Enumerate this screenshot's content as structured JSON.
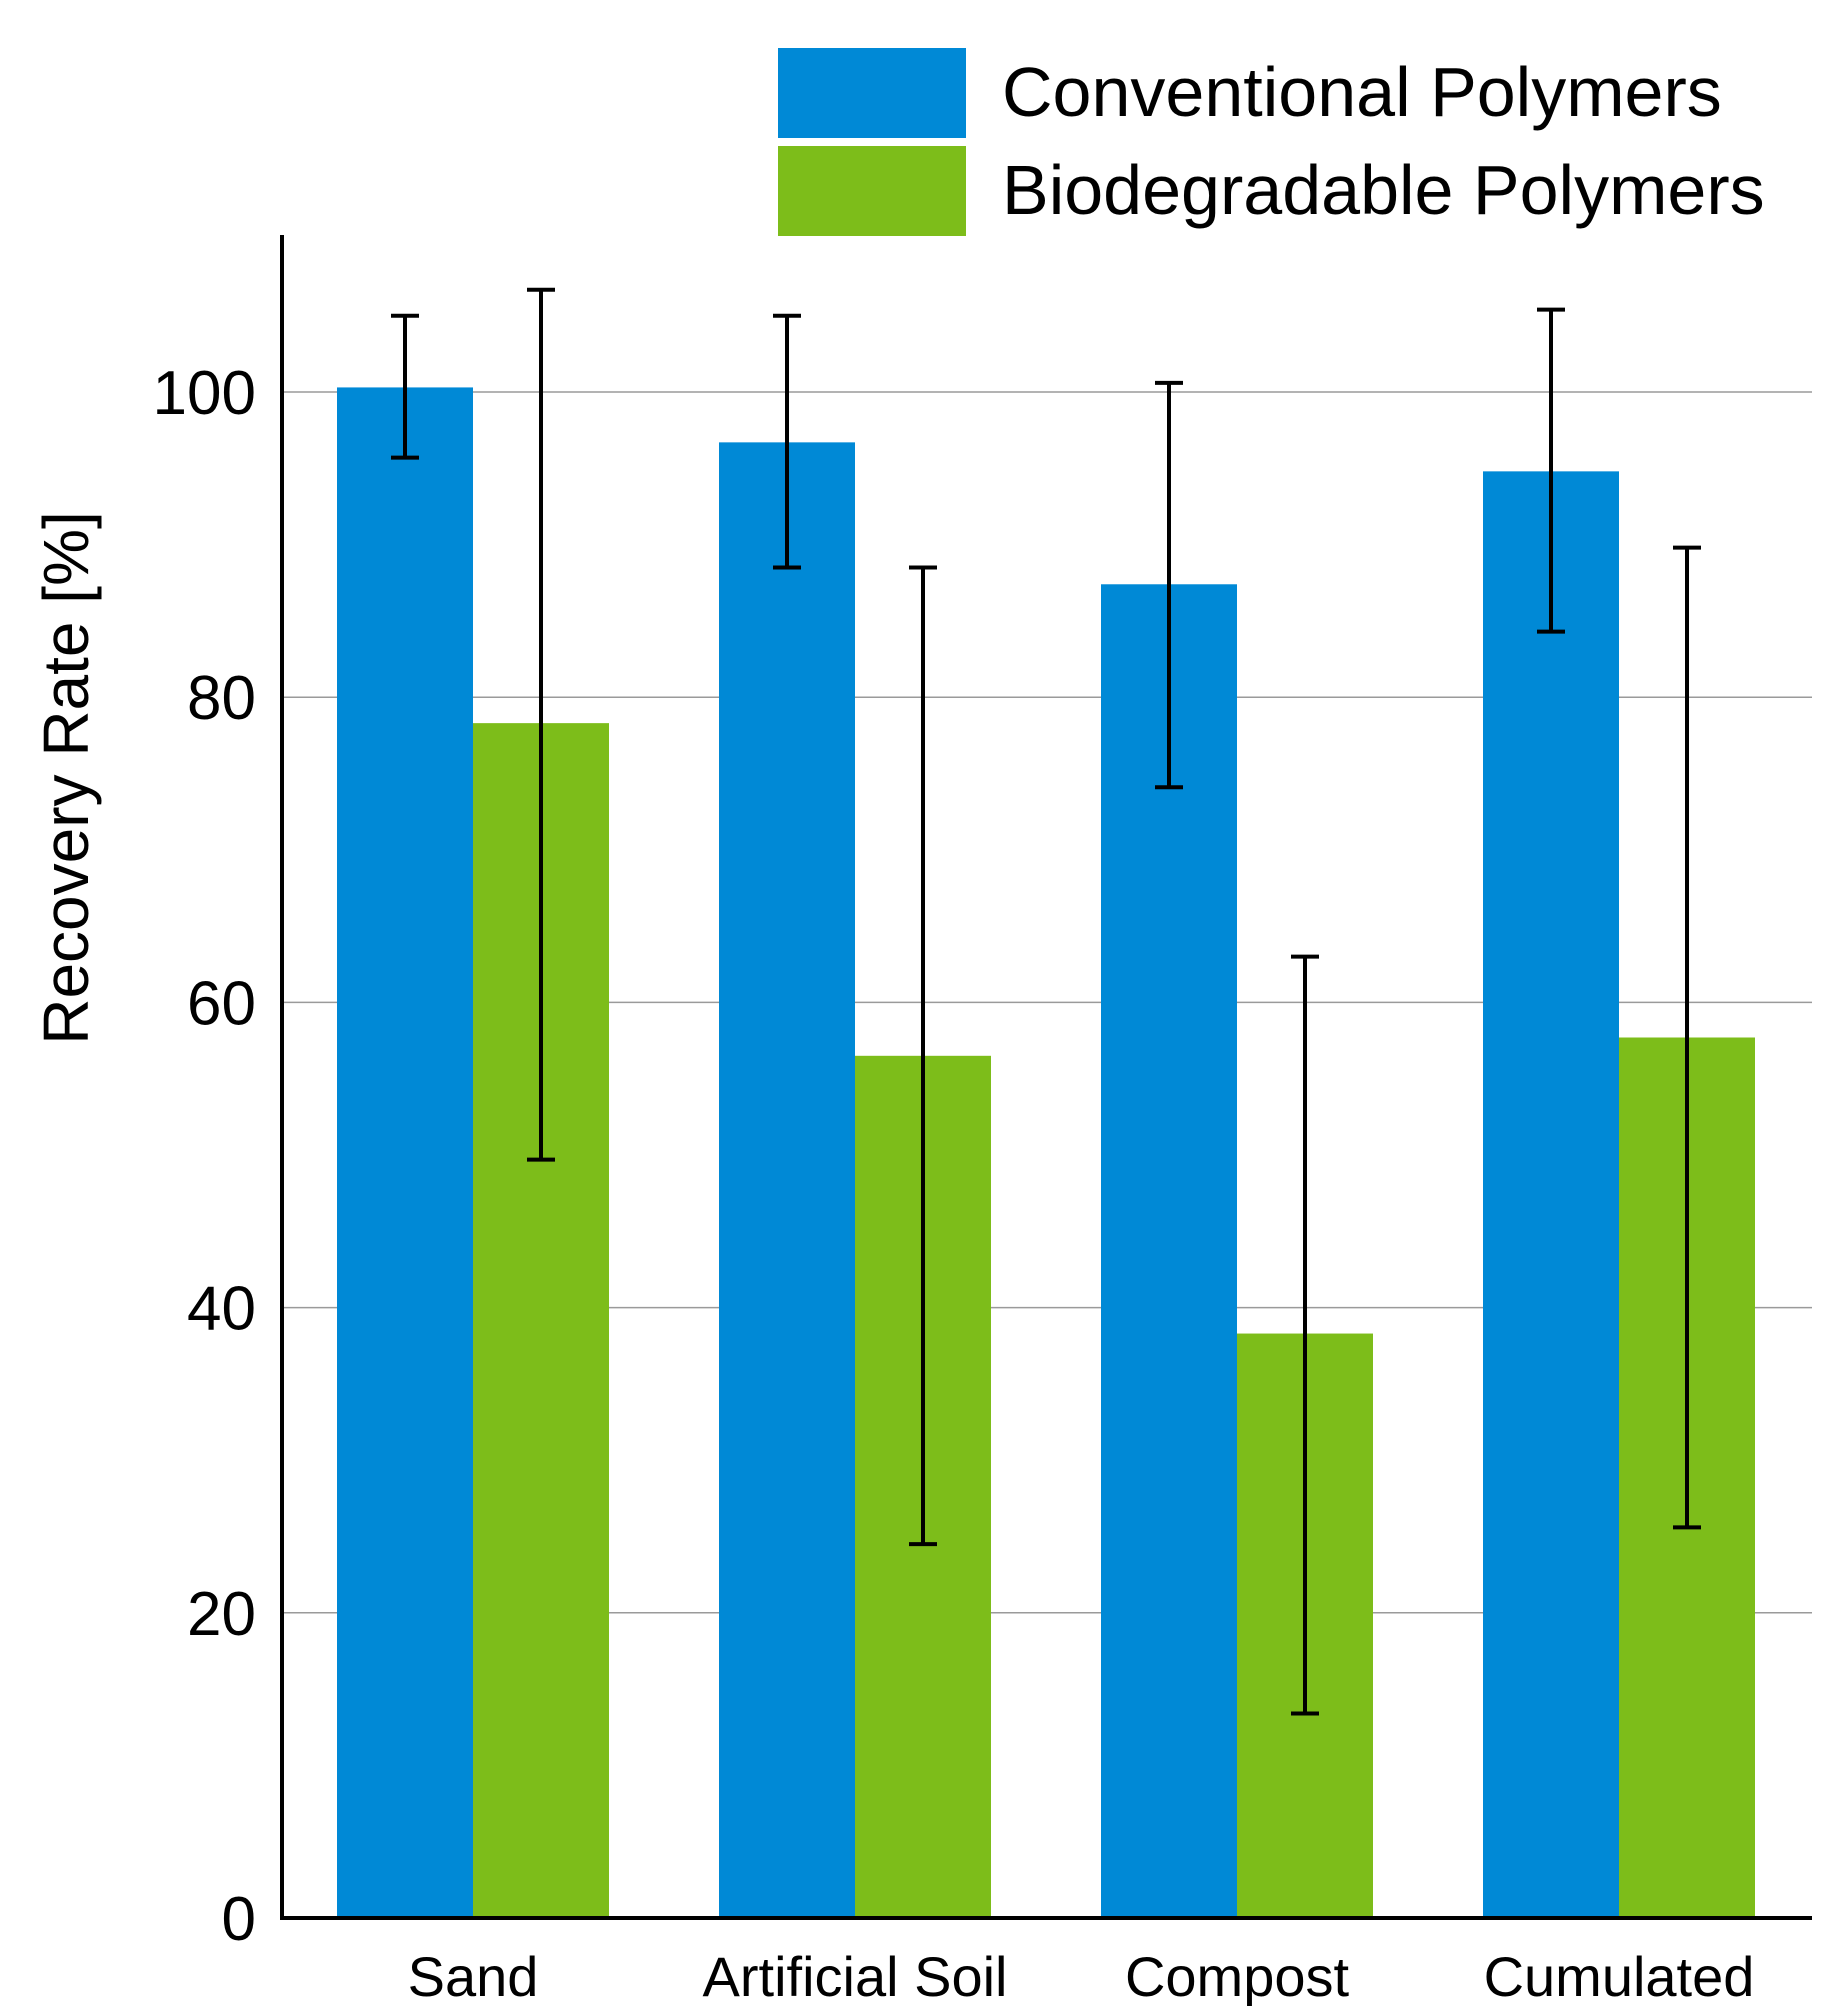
{
  "chart_data": {
    "type": "bar",
    "title": "",
    "xlabel": "",
    "ylabel": "Recovery Rate [%]",
    "ylim": [
      0,
      110
    ],
    "yticks": [
      0,
      20,
      40,
      60,
      80,
      100
    ],
    "grid": true,
    "legend_position": "top-right",
    "categories": [
      "Sand",
      "Artificial Soil",
      "Compost",
      "Cumulated"
    ],
    "series": [
      {
        "name": "Conventional Polymers",
        "color": "#0089d6",
        "values": [
          100.3,
          96.7,
          87.4,
          94.8
        ],
        "error_low": [
          95.7,
          88.5,
          74.1,
          84.3
        ],
        "error_high": [
          105.0,
          105.0,
          100.6,
          105.4
        ]
      },
      {
        "name": "Biodegradable Polymers",
        "color": "#7dbd1a",
        "values": [
          78.3,
          56.5,
          38.3,
          57.7
        ],
        "error_low": [
          49.7,
          24.5,
          13.4,
          25.6
        ],
        "error_high": [
          106.7,
          88.5,
          63.0,
          89.8
        ]
      }
    ]
  }
}
